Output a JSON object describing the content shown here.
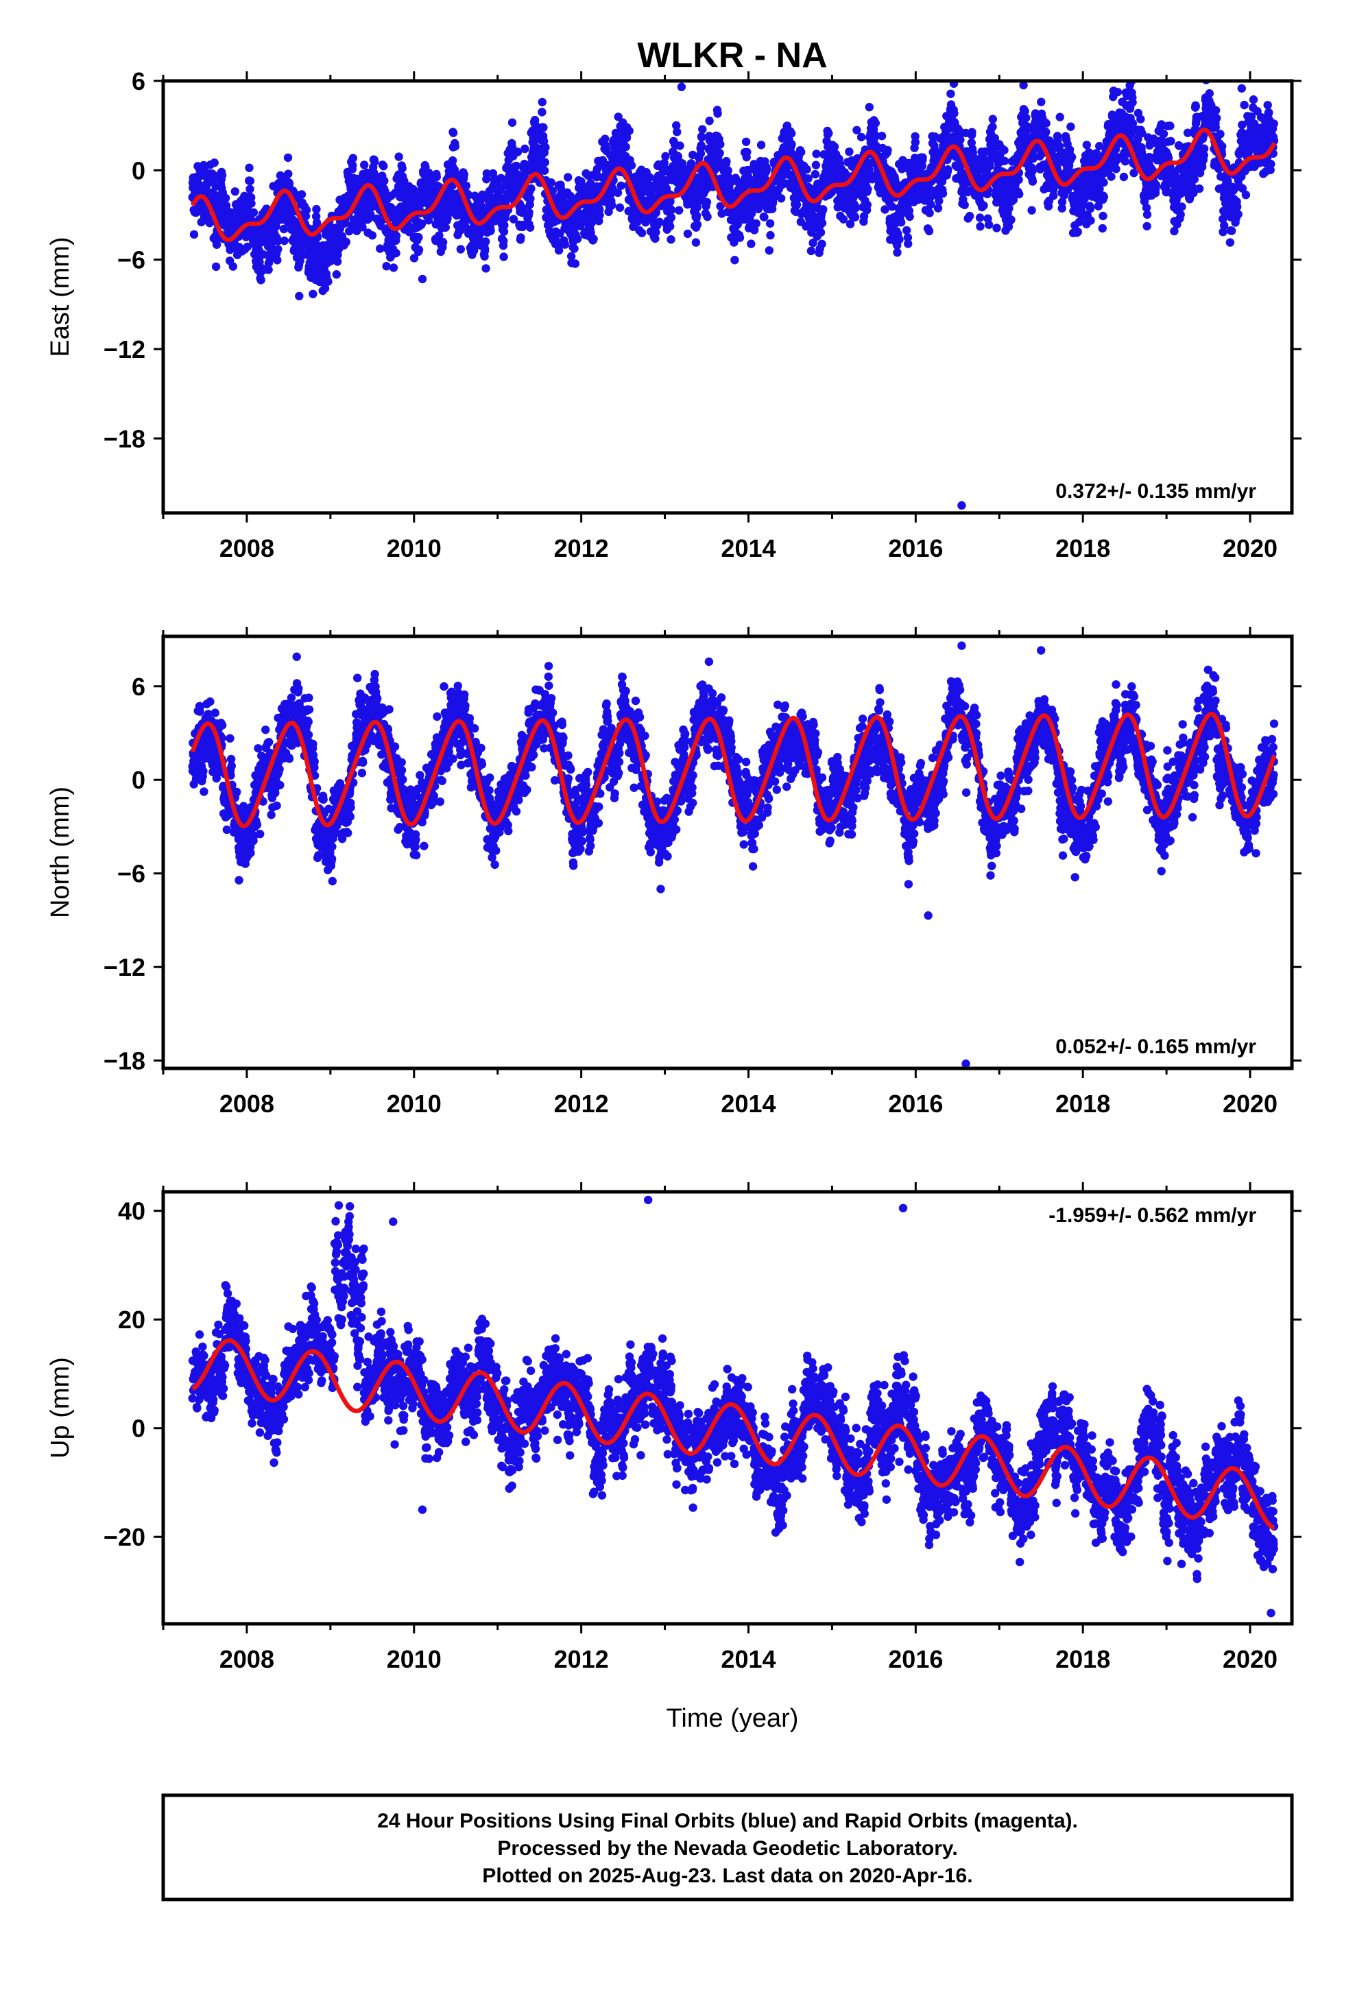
{
  "title": "WLKR - NA",
  "colors": {
    "data": "#1a0fe6",
    "model": "#ee1111",
    "frame": "#000000"
  },
  "x_ticks": [
    "2008",
    "2010",
    "2012",
    "2014",
    "2016",
    "2018",
    "2020"
  ],
  "x_axis_label": "Time (year)",
  "chart_data": [
    {
      "type": "scatter",
      "name": "east",
      "ylabel": "East (mm)",
      "xlim": [
        2007.0,
        2020.5
      ],
      "ylim": [
        -23,
        6
      ],
      "y_ticks": [
        6,
        0,
        -6,
        -12,
        -18
      ],
      "rate_text": "0.372+/- 0.135 mm/yr",
      "grid": false,
      "data_start": 2007.35,
      "data_end": 2020.29,
      "model": {
        "offset": -3.5,
        "rate": 0.372,
        "annual_amp": 1.2,
        "annual_phase": 0.15,
        "semi_amp": 0.6,
        "semi_phase": 0.35
      },
      "noise": 1.3,
      "outliers": [
        {
          "x": 2016.55,
          "y": -22.5
        },
        {
          "x": 2010.1,
          "y": -7.3
        },
        {
          "x": 2013.2,
          "y": 5.6
        },
        {
          "x": 2019.9,
          "y": 5.5
        }
      ]
    },
    {
      "type": "scatter",
      "name": "north",
      "ylabel": "North (mm)",
      "xlim": [
        2007.0,
        2020.5
      ],
      "ylim": [
        -18.5,
        9.2
      ],
      "y_ticks": [
        6,
        0,
        -6,
        -12,
        -18
      ],
      "rate_text": "0.052+/- 0.165 mm/yr",
      "grid": false,
      "data_start": 2007.35,
      "data_end": 2020.29,
      "model": {
        "offset": 0.3,
        "rate": 0.052,
        "annual_amp": 3.2,
        "annual_phase": 0.25,
        "semi_amp": 0.4,
        "semi_phase": 0.0
      },
      "noise": 1.2,
      "outliers": [
        {
          "x": 2016.6,
          "y": -18.2
        },
        {
          "x": 2016.15,
          "y": -8.7
        },
        {
          "x": 2012.95,
          "y": -7.0
        },
        {
          "x": 2016.55,
          "y": 8.6
        },
        {
          "x": 2017.5,
          "y": 8.3
        }
      ]
    },
    {
      "type": "scatter",
      "name": "up",
      "ylabel": "Up (mm)",
      "xlim": [
        2007.0,
        2020.5
      ],
      "ylim": [
        -36,
        43.5
      ],
      "y_ticks": [
        40,
        20,
        0,
        -20
      ],
      "rate_text": "-1.959+/- 0.562 mm/yr",
      "grid": false,
      "data_start": 2007.35,
      "data_end": 2020.29,
      "model": {
        "offset": 12.0,
        "rate": -1.959,
        "annual_amp": 5.0,
        "annual_phase": 0.55,
        "semi_amp": 0.0,
        "semi_phase": 0.0
      },
      "noise": 3.8,
      "outliers": [
        {
          "x": 2009.1,
          "y": 41.0
        },
        {
          "x": 2012.8,
          "y": 42.0
        },
        {
          "x": 2015.85,
          "y": 40.5
        },
        {
          "x": 2009.75,
          "y": 38.0
        },
        {
          "x": 2020.25,
          "y": -34.0
        },
        {
          "x": 2010.1,
          "y": -15.0
        }
      ]
    }
  ],
  "footer": {
    "line1": "24 Hour Positions Using Final Orbits (blue) and Rapid Orbits (magenta).",
    "line2": "Processed by the Nevada Geodetic Laboratory.",
    "line3": "Plotted on 2025-Aug-23. Last data on 2020-Apr-16."
  }
}
